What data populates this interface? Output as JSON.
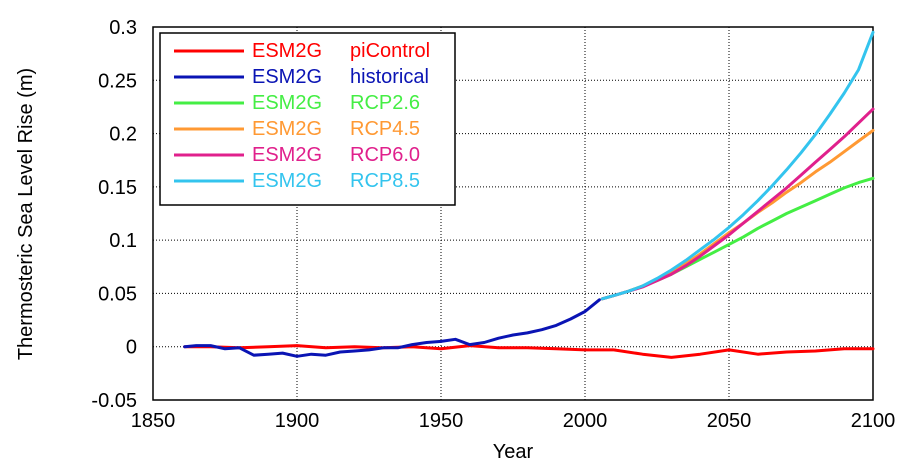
{
  "chart_data": {
    "type": "line",
    "title": "",
    "xlabel": "Year",
    "ylabel": "Thermosteric Sea Level Rise (m)",
    "xlim": [
      1850,
      2100
    ],
    "ylim": [
      -0.05,
      0.3
    ],
    "x_ticks": [
      1850,
      1900,
      1950,
      2000,
      2050,
      2100
    ],
    "y_ticks": [
      -0.05,
      0,
      0.05,
      0.1,
      0.15,
      0.2,
      0.25,
      0.3
    ],
    "x_tick_labels": [
      "1850",
      "1900",
      "1950",
      "2000",
      "2050",
      "2100"
    ],
    "y_tick_labels": [
      "-0.05",
      "0",
      "0.05",
      "0.1",
      "0.15",
      "0.2",
      "0.25",
      "0.3"
    ],
    "grid": true,
    "legend_position": "top-left",
    "series": [
      {
        "name": "ESM2G piControl",
        "model": "ESM2G",
        "scenario": "piControl",
        "color": "#ff0000",
        "x": [
          1861,
          1870,
          1880,
          1890,
          1900,
          1910,
          1920,
          1930,
          1940,
          1950,
          1960,
          1970,
          1980,
          1990,
          2000,
          2010,
          2020,
          2030,
          2040,
          2050,
          2060,
          2070,
          2080,
          2090,
          2100
        ],
        "y": [
          0.0,
          0.0,
          -0.001,
          0.0,
          0.001,
          -0.001,
          0.0,
          -0.001,
          0.0,
          -0.002,
          0.001,
          -0.001,
          -0.001,
          -0.002,
          -0.003,
          -0.003,
          -0.007,
          -0.01,
          -0.007,
          -0.003,
          -0.007,
          -0.005,
          -0.004,
          -0.002,
          -0.002
        ]
      },
      {
        "name": "ESM2G historical",
        "model": "ESM2G",
        "scenario": "historical",
        "color": "#0a14b4",
        "x": [
          1861,
          1865,
          1870,
          1875,
          1880,
          1885,
          1890,
          1895,
          1900,
          1905,
          1910,
          1915,
          1920,
          1925,
          1930,
          1935,
          1940,
          1945,
          1950,
          1955,
          1960,
          1965,
          1970,
          1975,
          1980,
          1985,
          1990,
          1995,
          2000,
          2005
        ],
        "y": [
          0.0,
          0.001,
          0.001,
          -0.002,
          -0.001,
          -0.008,
          -0.007,
          -0.006,
          -0.009,
          -0.007,
          -0.008,
          -0.005,
          -0.004,
          -0.003,
          -0.001,
          -0.001,
          0.002,
          0.004,
          0.005,
          0.007,
          0.002,
          0.004,
          0.008,
          0.011,
          0.013,
          0.016,
          0.02,
          0.026,
          0.033,
          0.044
        ]
      },
      {
        "name": "ESM2G RCP2.6",
        "model": "ESM2G",
        "scenario": "RCP2.6",
        "color": "#44ee44",
        "x": [
          2006,
          2010,
          2015,
          2020,
          2025,
          2030,
          2035,
          2040,
          2045,
          2050,
          2055,
          2060,
          2065,
          2070,
          2075,
          2080,
          2085,
          2090,
          2095,
          2100
        ],
        "y": [
          0.045,
          0.048,
          0.052,
          0.057,
          0.062,
          0.068,
          0.075,
          0.082,
          0.089,
          0.096,
          0.103,
          0.111,
          0.118,
          0.125,
          0.131,
          0.137,
          0.143,
          0.149,
          0.154,
          0.158
        ]
      },
      {
        "name": "ESM2G RCP4.5",
        "model": "ESM2G",
        "scenario": "RCP4.5",
        "color": "#ff9933",
        "x": [
          2006,
          2010,
          2015,
          2020,
          2025,
          2030,
          2035,
          2040,
          2045,
          2050,
          2055,
          2060,
          2065,
          2070,
          2075,
          2080,
          2085,
          2090,
          2095,
          2100
        ],
        "y": [
          0.045,
          0.048,
          0.052,
          0.057,
          0.063,
          0.07,
          0.078,
          0.087,
          0.097,
          0.107,
          0.116,
          0.126,
          0.135,
          0.145,
          0.154,
          0.164,
          0.173,
          0.183,
          0.193,
          0.203
        ]
      },
      {
        "name": "ESM2G RCP6.0",
        "model": "ESM2G",
        "scenario": "RCP6.0",
        "color": "#e0208c",
        "x": [
          2006,
          2010,
          2015,
          2020,
          2025,
          2030,
          2035,
          2040,
          2045,
          2050,
          2055,
          2060,
          2065,
          2070,
          2075,
          2080,
          2085,
          2090,
          2095,
          2100
        ],
        "y": [
          0.045,
          0.048,
          0.052,
          0.056,
          0.062,
          0.068,
          0.076,
          0.085,
          0.095,
          0.105,
          0.116,
          0.127,
          0.138,
          0.149,
          0.161,
          0.173,
          0.185,
          0.197,
          0.21,
          0.223
        ]
      },
      {
        "name": "ESM2G RCP8.5",
        "model": "ESM2G",
        "scenario": "RCP8.5",
        "color": "#33c4ee",
        "x": [
          2006,
          2010,
          2015,
          2020,
          2025,
          2030,
          2035,
          2040,
          2045,
          2050,
          2055,
          2060,
          2065,
          2070,
          2075,
          2080,
          2085,
          2090,
          2095,
          2100
        ],
        "y": [
          0.045,
          0.048,
          0.052,
          0.057,
          0.064,
          0.072,
          0.081,
          0.091,
          0.101,
          0.112,
          0.124,
          0.137,
          0.151,
          0.166,
          0.182,
          0.199,
          0.218,
          0.238,
          0.26,
          0.295
        ]
      }
    ]
  }
}
